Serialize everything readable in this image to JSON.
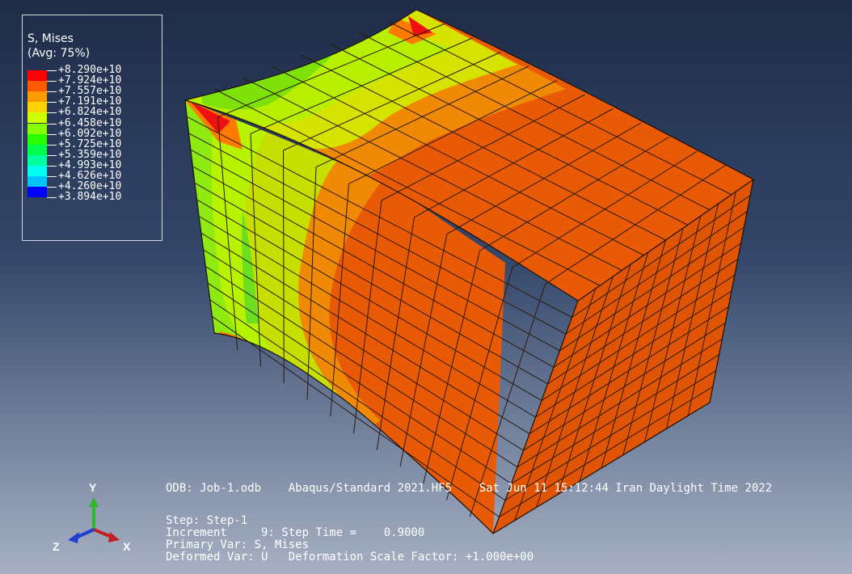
{
  "legend": {
    "variable": "S, Mises",
    "averaging": "(Avg: 75%)",
    "levels": [
      {
        "value": "+8.290e+10",
        "color": "#ff0000"
      },
      {
        "value": "+7.924e+10",
        "color": "#ff5a00"
      },
      {
        "value": "+7.557e+10",
        "color": "#ff9a00"
      },
      {
        "value": "+7.191e+10",
        "color": "#ffd200"
      },
      {
        "value": "+6.824e+10",
        "color": "#cdff00"
      },
      {
        "value": "+6.458e+10",
        "color": "#87ff00"
      },
      {
        "value": "+6.092e+10",
        "color": "#29ff00"
      },
      {
        "value": "+5.725e+10",
        "color": "#00ff4a"
      },
      {
        "value": "+5.359e+10",
        "color": "#00ff9e"
      },
      {
        "value": "+4.993e+10",
        "color": "#00ffee"
      },
      {
        "value": "+4.626e+10",
        "color": "#00c4ff"
      },
      {
        "value": "+4.260e+10",
        "color": "#006cff"
      },
      {
        "value": "+3.894e+10",
        "color": "#0000ff"
      }
    ]
  },
  "info": {
    "odb": "ODB: Job-1.odb    Abaqus/Standard 2021.HF5    Sat Jun 11 15:12:44 Iran Daylight Time 2022",
    "step": "Step: Step-1",
    "increment": "Increment     9: Step Time =    0.9000",
    "primary_var": "Primary Var: S, Mises",
    "deformed_var": "Deformed Var: U   Deformation Scale Factor: +1.000e+00"
  },
  "triad": {
    "x": "X",
    "y": "Y",
    "z": "Z"
  },
  "colors": {
    "dominant_orange": "#e85a05",
    "mesh_line": "#2a1a10"
  }
}
